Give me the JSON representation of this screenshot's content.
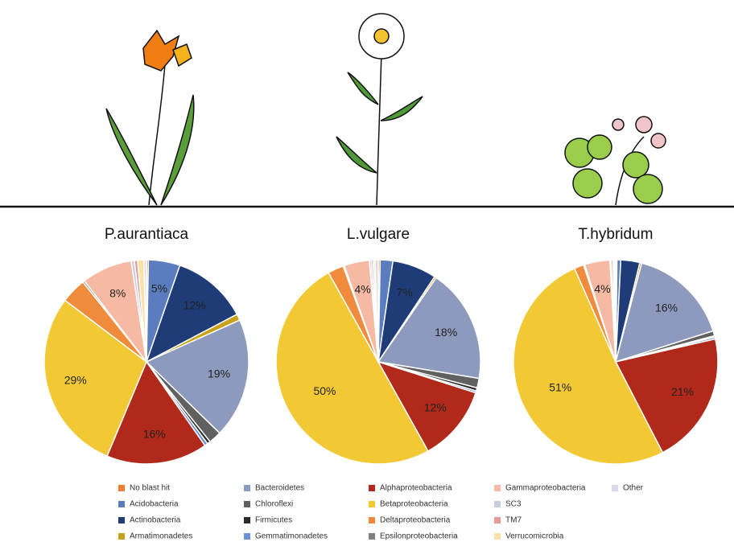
{
  "chart_data": [
    {
      "type": "pie",
      "title": "P.aurantiaca",
      "categories": [
        "No blast hit",
        "Acidobacteria",
        "Actinobacteria",
        "Armatimonadetes",
        "Bacteroidetes",
        "Chloroflexi",
        "Firmicutes",
        "Gemmatimonadetes",
        "Alphaproteobacteria",
        "Betaproteobacteria",
        "Deltaproteobacteria",
        "Epsilonproteobacteria",
        "Gammaproteobacteria",
        "SC3",
        "TM7",
        "Verrucomicrobia",
        "Other"
      ],
      "colors": [
        "#ed7d31",
        "#5b7dbf",
        "#1f3c78",
        "#c9a21a",
        "#8e9abd",
        "#606060",
        "#2b2b2b",
        "#6b8fd8",
        "#b0291a",
        "#f2c934",
        "#f08b3b",
        "#808080",
        "#f6b9a3",
        "#c6cde0",
        "#e49c94",
        "#fbe1a6",
        "#d8dbe6"
      ],
      "values": [
        0.3,
        5,
        12,
        1,
        19,
        2,
        0.5,
        0.5,
        16,
        29,
        4,
        0.3,
        8,
        0.5,
        0.5,
        1,
        0.4
      ],
      "value_labels": [
        null,
        "5%",
        "12%",
        null,
        "19%",
        null,
        null,
        null,
        "16%",
        "29%",
        null,
        null,
        "8%",
        null,
        null,
        null,
        null
      ]
    },
    {
      "type": "pie",
      "title": "L.vulgare",
      "categories": [
        "No blast hit",
        "Acidobacteria",
        "Actinobacteria",
        "Armatimonadetes",
        "Bacteroidetes",
        "Chloroflexi",
        "Firmicutes",
        "Gemmatimonadetes",
        "Alphaproteobacteria",
        "Betaproteobacteria",
        "Deltaproteobacteria",
        "Epsilonproteobacteria",
        "Gammaproteobacteria",
        "SC3",
        "TM7",
        "Verrucomicrobia",
        "Other"
      ],
      "colors": [
        "#ed7d31",
        "#5b7dbf",
        "#1f3c78",
        "#c9a21a",
        "#8e9abd",
        "#606060",
        "#2b2b2b",
        "#6b8fd8",
        "#b0291a",
        "#f2c934",
        "#f08b3b",
        "#808080",
        "#f6b9a3",
        "#c6cde0",
        "#e49c94",
        "#fbe1a6",
        "#d8dbe6"
      ],
      "values": [
        0.3,
        2,
        7,
        0.3,
        18,
        1.5,
        0.5,
        0.3,
        12,
        50,
        2.5,
        0.2,
        4,
        0.3,
        0.3,
        0.3,
        0.5
      ],
      "value_labels": [
        null,
        null,
        "7%",
        null,
        "18%",
        null,
        null,
        null,
        "12%",
        "50%",
        null,
        null,
        "4%",
        null,
        null,
        null,
        null
      ]
    },
    {
      "type": "pie",
      "title": "T.hybridum",
      "categories": [
        "No blast hit",
        "Acidobacteria",
        "Actinobacteria",
        "Armatimonadetes",
        "Bacteroidetes",
        "Chloroflexi",
        "Firmicutes",
        "Gemmatimonadetes",
        "Alphaproteobacteria",
        "Betaproteobacteria",
        "Deltaproteobacteria",
        "Epsilonproteobacteria",
        "Gammaproteobacteria",
        "SC3",
        "TM7",
        "Verrucomicrobia",
        "Other"
      ],
      "colors": [
        "#ed7d31",
        "#5b7dbf",
        "#1f3c78",
        "#c9a21a",
        "#8e9abd",
        "#606060",
        "#2b2b2b",
        "#6b8fd8",
        "#b0291a",
        "#f2c934",
        "#f08b3b",
        "#808080",
        "#f6b9a3",
        "#c6cde0",
        "#e49c94",
        "#fbe1a6",
        "#d8dbe6"
      ],
      "values": [
        0.2,
        0.6,
        3,
        0.3,
        16,
        0.8,
        0.2,
        0.3,
        21,
        51,
        1.5,
        0.2,
        4,
        0.2,
        0.3,
        0.2,
        0.2
      ],
      "value_labels": [
        null,
        null,
        null,
        null,
        "16%",
        null,
        null,
        null,
        "21%",
        "51%",
        null,
        null,
        "4%",
        null,
        null,
        null,
        null
      ]
    }
  ]
}
